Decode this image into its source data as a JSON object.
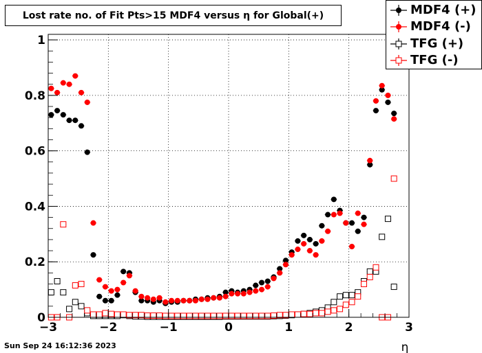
{
  "chart_data": {
    "type": "scatter",
    "title": "Lost rate no. of Fit Pts>15 MDF4 versus η for Global(+)",
    "xlabel": "η",
    "ylabel": "",
    "xlim": [
      -3,
      3
    ],
    "ylim": [
      0,
      1.02
    ],
    "x_ticks": [
      "−3",
      "−2",
      "−1",
      "0",
      "1",
      "2",
      "3"
    ],
    "y_ticks": [
      "0",
      "0.2",
      "0.4",
      "0.6",
      "0.8",
      "1"
    ],
    "grid": true,
    "legend_position": "top-right",
    "series": [
      {
        "name": "MDF4 (+)",
        "color": "#000000",
        "marker": "filled-circle",
        "x": [
          -2.95,
          -2.85,
          -2.75,
          -2.65,
          -2.55,
          -2.45,
          -2.35,
          -2.25,
          -2.15,
          -2.05,
          -1.95,
          -1.85,
          -1.75,
          -1.65,
          -1.55,
          -1.45,
          -1.35,
          -1.25,
          -1.15,
          -1.05,
          -0.95,
          -0.85,
          -0.75,
          -0.65,
          -0.55,
          -0.45,
          -0.35,
          -0.25,
          -0.15,
          -0.05,
          0.05,
          0.15,
          0.25,
          0.35,
          0.45,
          0.55,
          0.65,
          0.75,
          0.85,
          0.95,
          1.05,
          1.15,
          1.25,
          1.35,
          1.45,
          1.55,
          1.65,
          1.75,
          1.85,
          1.95,
          2.05,
          2.15,
          2.25,
          2.35,
          2.45,
          2.55,
          2.65,
          2.75
        ],
        "y": [
          0.73,
          0.745,
          0.73,
          0.71,
          0.71,
          0.69,
          0.595,
          0.225,
          0.075,
          0.06,
          0.06,
          0.08,
          0.165,
          0.16,
          0.09,
          0.06,
          0.06,
          0.055,
          0.06,
          0.05,
          0.055,
          0.055,
          0.06,
          0.06,
          0.065,
          0.065,
          0.07,
          0.07,
          0.075,
          0.09,
          0.095,
          0.09,
          0.095,
          0.1,
          0.115,
          0.125,
          0.13,
          0.145,
          0.175,
          0.205,
          0.235,
          0.275,
          0.295,
          0.28,
          0.265,
          0.33,
          0.37,
          0.425,
          0.385,
          0.34,
          0.34,
          0.31,
          0.36,
          0.55,
          0.745,
          0.82,
          0.775,
          0.735
        ]
      },
      {
        "name": "MDF4 (-)",
        "color": "#ff0000",
        "marker": "filled-circle",
        "x": [
          -2.95,
          -2.85,
          -2.75,
          -2.65,
          -2.55,
          -2.45,
          -2.35,
          -2.25,
          -2.15,
          -2.05,
          -1.95,
          -1.85,
          -1.75,
          -1.65,
          -1.55,
          -1.45,
          -1.35,
          -1.25,
          -1.15,
          -1.05,
          -0.95,
          -0.85,
          -0.75,
          -0.65,
          -0.55,
          -0.45,
          -0.35,
          -0.25,
          -0.15,
          -0.05,
          0.05,
          0.15,
          0.25,
          0.35,
          0.45,
          0.55,
          0.65,
          0.75,
          0.85,
          0.95,
          1.05,
          1.15,
          1.25,
          1.35,
          1.45,
          1.55,
          1.65,
          1.75,
          1.85,
          1.95,
          2.05,
          2.15,
          2.25,
          2.35,
          2.45,
          2.55,
          2.65,
          2.75
        ],
        "y": [
          0.825,
          0.81,
          0.845,
          0.84,
          0.87,
          0.81,
          0.775,
          0.34,
          0.135,
          0.11,
          0.095,
          0.1,
          0.125,
          0.15,
          0.095,
          0.075,
          0.07,
          0.065,
          0.07,
          0.055,
          0.06,
          0.06,
          0.06,
          0.06,
          0.06,
          0.065,
          0.065,
          0.07,
          0.07,
          0.075,
          0.085,
          0.085,
          0.085,
          0.09,
          0.095,
          0.1,
          0.11,
          0.14,
          0.16,
          0.19,
          0.225,
          0.245,
          0.265,
          0.24,
          0.225,
          0.275,
          0.31,
          0.37,
          0.375,
          0.34,
          0.255,
          0.375,
          0.335,
          0.565,
          0.78,
          0.835,
          0.8,
          0.715
        ]
      },
      {
        "name": "TFG (+)",
        "color": "#000000",
        "marker": "open-square",
        "x": [
          -2.95,
          -2.85,
          -2.75,
          -2.65,
          -2.55,
          -2.45,
          -2.35,
          -2.25,
          -2.15,
          -2.05,
          -1.95,
          -1.85,
          -1.75,
          -1.65,
          -1.55,
          -1.45,
          -1.35,
          -1.25,
          -1.15,
          -1.05,
          -0.95,
          -0.85,
          -0.75,
          -0.65,
          -0.55,
          -0.45,
          -0.35,
          -0.25,
          -0.15,
          -0.05,
          0.05,
          0.15,
          0.25,
          0.35,
          0.45,
          0.55,
          0.65,
          0.75,
          0.85,
          0.95,
          1.05,
          1.15,
          1.25,
          1.35,
          1.45,
          1.55,
          1.65,
          1.75,
          1.85,
          1.95,
          2.05,
          2.15,
          2.25,
          2.35,
          2.45,
          2.55,
          2.65,
          2.75
        ],
        "y": [
          0.09,
          0.13,
          0.09,
          0.03,
          0.055,
          0.04,
          0.015,
          0.005,
          0.005,
          0.005,
          0.005,
          0.005,
          0.008,
          0.005,
          0.003,
          0.003,
          0.002,
          0.002,
          0.002,
          0.002,
          0.002,
          0.002,
          0.002,
          0.002,
          0.002,
          0.002,
          0.002,
          0.002,
          0.002,
          0.003,
          0.003,
          0.003,
          0.003,
          0.003,
          0.003,
          0.003,
          0.003,
          0.004,
          0.005,
          0.006,
          0.008,
          0.01,
          0.012,
          0.015,
          0.02,
          0.025,
          0.035,
          0.055,
          0.075,
          0.08,
          0.08,
          0.09,
          0.13,
          0.165,
          0.165,
          0.29,
          0.355,
          0.11
        ]
      },
      {
        "name": "TFG (-)",
        "color": "#ff0000",
        "marker": "open-square",
        "x": [
          -2.95,
          -2.85,
          -2.75,
          -2.65,
          -2.55,
          -2.45,
          -2.35,
          -2.25,
          -2.15,
          -2.05,
          -1.95,
          -1.85,
          -1.75,
          -1.65,
          -1.55,
          -1.45,
          -1.35,
          -1.25,
          -1.15,
          -1.05,
          -0.95,
          -0.85,
          -0.75,
          -0.65,
          -0.55,
          -0.45,
          -0.35,
          -0.25,
          -0.15,
          -0.05,
          0.05,
          0.15,
          0.25,
          0.35,
          0.45,
          0.55,
          0.65,
          0.75,
          0.85,
          0.95,
          1.05,
          1.15,
          1.25,
          1.35,
          1.45,
          1.55,
          1.65,
          1.75,
          1.85,
          1.95,
          2.05,
          2.15,
          2.25,
          2.35,
          2.45,
          2.55,
          2.65,
          2.75
        ],
        "y": [
          0.0,
          0.0,
          0.335,
          0.0,
          0.115,
          0.12,
          0.025,
          0.01,
          0.01,
          0.015,
          0.012,
          0.01,
          0.01,
          0.008,
          0.008,
          0.008,
          0.006,
          0.006,
          0.006,
          0.005,
          0.005,
          0.005,
          0.005,
          0.005,
          0.005,
          0.005,
          0.005,
          0.005,
          0.005,
          0.005,
          0.005,
          0.005,
          0.005,
          0.005,
          0.005,
          0.005,
          0.005,
          0.006,
          0.008,
          0.008,
          0.01,
          0.01,
          0.012,
          0.012,
          0.015,
          0.015,
          0.02,
          0.025,
          0.03,
          0.045,
          0.055,
          0.075,
          0.12,
          0.145,
          0.18,
          0.0,
          0.0,
          0.5
        ]
      }
    ]
  },
  "timestamp": "Sun Sep 24 16:12:36 2023"
}
